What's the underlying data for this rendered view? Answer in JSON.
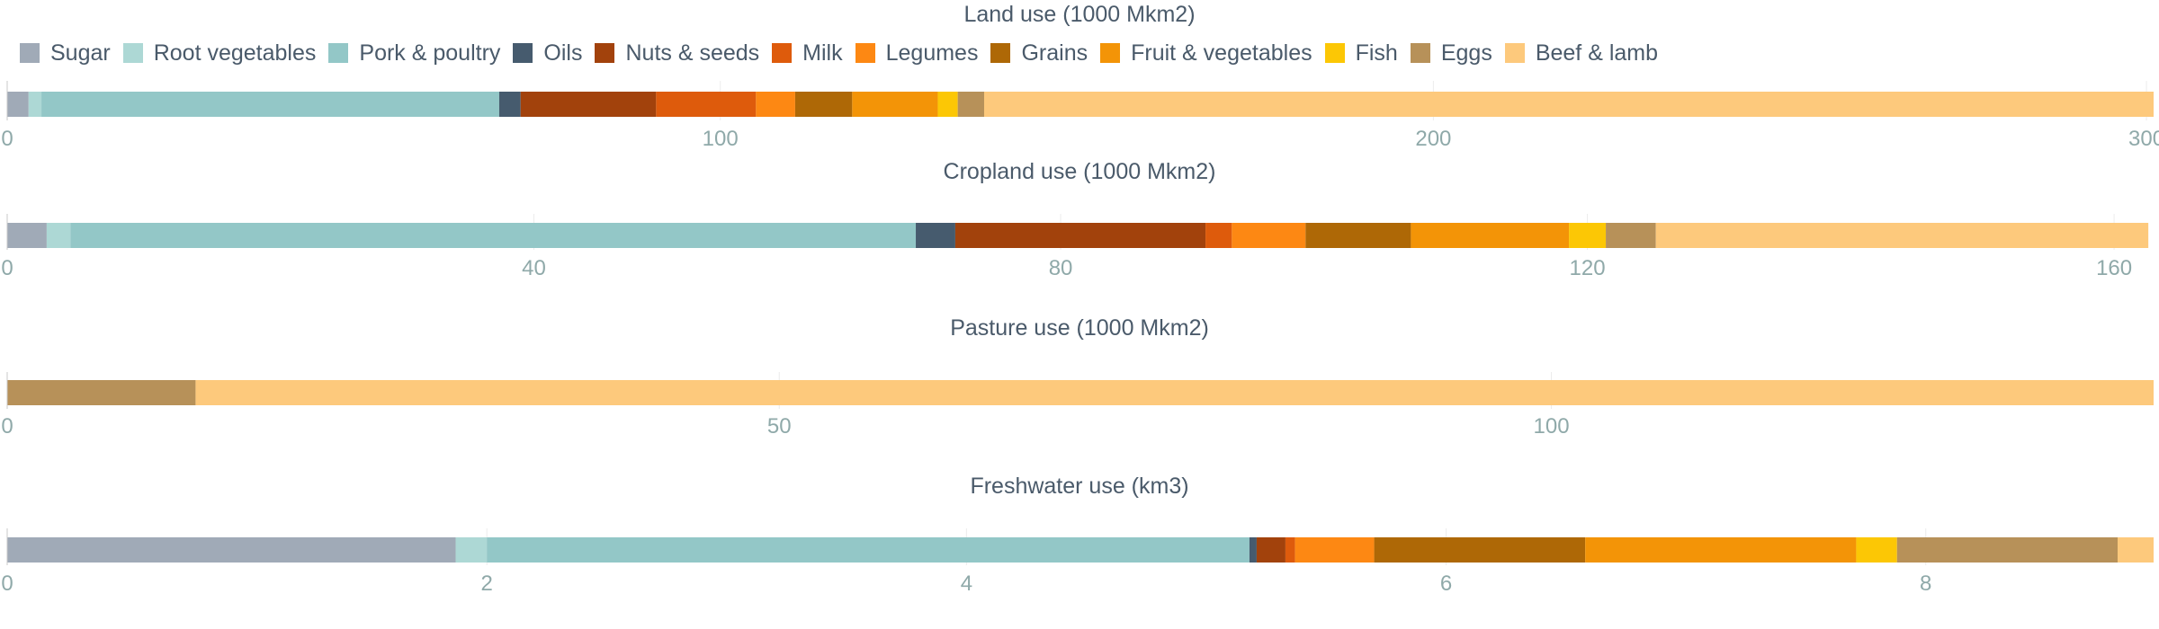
{
  "chart_data": {
    "type": "bar",
    "orientation": "horizontal",
    "stacked": true,
    "legend": {
      "placement": "top-left",
      "items": [
        {
          "name": "Sugar",
          "color": "#a0aab7"
        },
        {
          "name": "Root vegetables",
          "color": "#add8d5"
        },
        {
          "name": "Pork & poultry",
          "color": "#93c7c7"
        },
        {
          "name": "Oils",
          "color": "#465b6e"
        },
        {
          "name": "Nuts & seeds",
          "color": "#a2420c"
        },
        {
          "name": "Milk",
          "color": "#de5b0c"
        },
        {
          "name": "Legumes",
          "color": "#fd8813"
        },
        {
          "name": "Grains",
          "color": "#ae6806"
        },
        {
          "name": "Fruit & vegetables",
          "color": "#f39407"
        },
        {
          "name": "Fish",
          "color": "#fcc705"
        },
        {
          "name": "Eggs",
          "color": "#b79159"
        },
        {
          "name": "Beef & lamb",
          "color": "#fdc97c"
        }
      ]
    },
    "panels": [
      {
        "title": "Land use (1000 Mkm2)",
        "xlim": [
          0,
          301
        ],
        "ticks": [
          0,
          100,
          200,
          300
        ],
        "tick_labels": [
          "0",
          "100",
          "200",
          "300"
        ],
        "grid": true,
        "values": {
          "Sugar": 3,
          "Root vegetables": 1.8,
          "Pork & poultry": 64.2,
          "Oils": 3,
          "Nuts & seeds": 19,
          "Milk": 14,
          "Legumes": 5.5,
          "Grains": 8,
          "Fruit & vegetables": 12,
          "Fish": 2.8,
          "Eggs": 3.7,
          "Beef & lamb": 164
        }
      },
      {
        "title": "Cropland use (1000 Mkm2)",
        "xlim": [
          0,
          163
        ],
        "ticks": [
          0,
          40,
          80,
          120,
          160
        ],
        "tick_labels": [
          "0",
          "40",
          "80",
          "120",
          "160"
        ],
        "grid": true,
        "values": {
          "Sugar": 3,
          "Root vegetables": 1.8,
          "Pork & poultry": 64.2,
          "Oils": 3,
          "Nuts & seeds": 19,
          "Milk": 2,
          "Legumes": 5.6,
          "Grains": 8,
          "Fruit & vegetables": 12,
          "Fish": 2.8,
          "Eggs": 3.8,
          "Beef & lamb": 37.4
        }
      },
      {
        "title": "Pasture use (1000 Mkm2)",
        "xlim": [
          0,
          139
        ],
        "ticks": [
          0,
          50,
          100
        ],
        "tick_labels": [
          "0",
          "50",
          "100"
        ],
        "grid": true,
        "values": {
          "Eggs": 12.2,
          "Beef & lamb": 126.8
        }
      },
      {
        "title": "Freshwater use (km3)",
        "xlim": [
          0,
          8.95
        ],
        "ticks": [
          0,
          2,
          4,
          6,
          8
        ],
        "tick_labels": [
          "0",
          "2",
          "4",
          "6",
          "8"
        ],
        "grid": true,
        "values": {
          "Sugar": 1.87,
          "Root vegetables": 0.13,
          "Pork & poultry": 3.18,
          "Oils": 0.03,
          "Nuts & seeds": 0.12,
          "Milk": 0.04,
          "Legumes": 0.33,
          "Grains": 0.88,
          "Fruit & vegetables": 1.13,
          "Fish": 0.17,
          "Eggs": 0.92,
          "Beef & lamb": 0.15
        }
      }
    ]
  }
}
